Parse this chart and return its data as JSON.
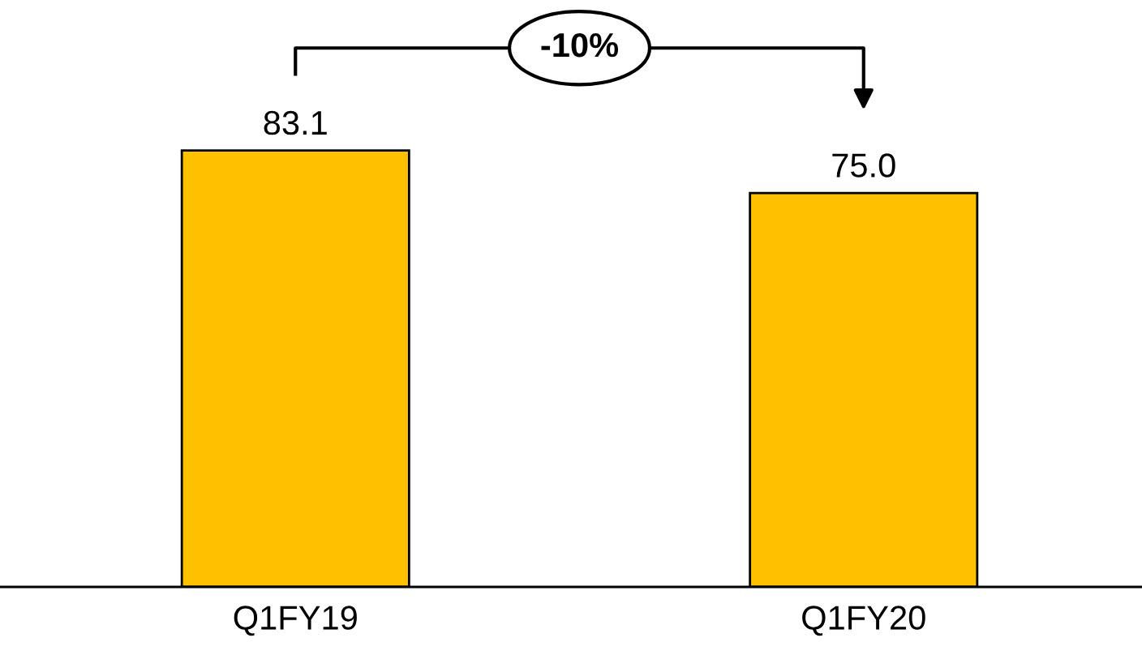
{
  "chart_data": {
    "type": "bar",
    "categories": [
      "Q1FY19",
      "Q1FY20"
    ],
    "values": [
      83.1,
      75.0
    ],
    "value_labels": [
      "83.1",
      "75.0"
    ],
    "color": "#ffc000",
    "annotations": [
      "-10%"
    ],
    "grid": false,
    "legend": false
  }
}
